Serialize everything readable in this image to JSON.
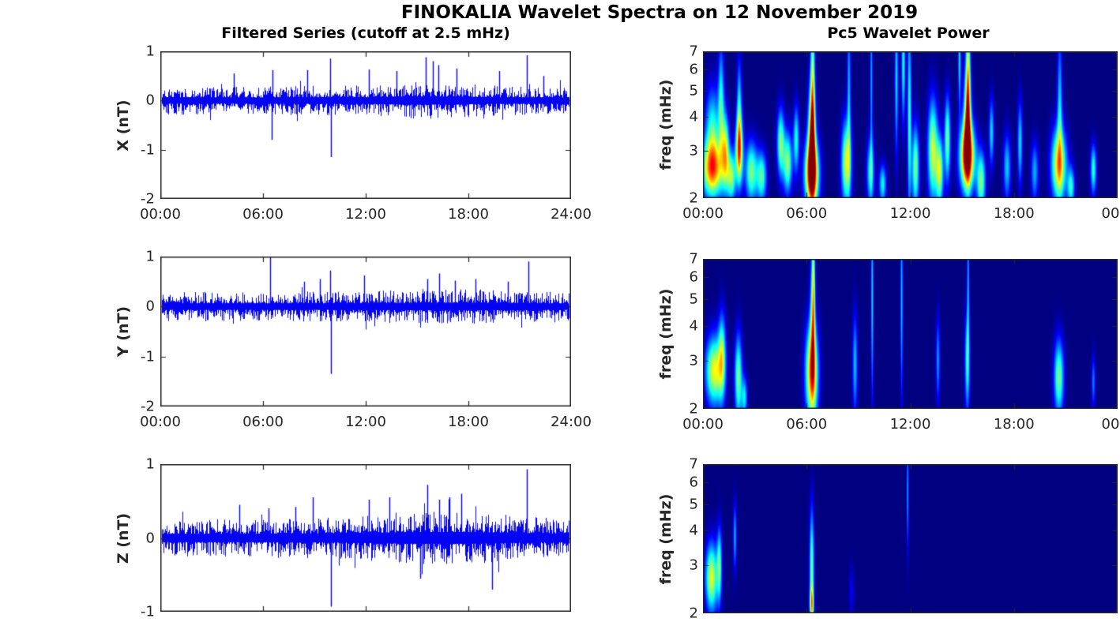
{
  "figure": {
    "title": "FINOKALIA Wavelet Spectra on 12 November 2019"
  },
  "colors": {
    "series_line": "#0404f2",
    "axis": "#262626",
    "title_text": "#000000",
    "spectrogram_background": "#000084",
    "colormap": "jet"
  },
  "left_column": {
    "title": "Filtered Series (cutoff at 2.5 mHz)"
  },
  "right_column": {
    "title": "Pc5 Wavelet Power"
  },
  "chart_data": [
    {
      "type": "line",
      "component": "X",
      "ylabel": "X (nT)",
      "x_range_hours": [
        0,
        24
      ],
      "ylim": [
        -2,
        1
      ],
      "x_ticks": [
        "00:00",
        "06:00",
        "12:00",
        "18:00",
        "24:00"
      ],
      "y_ticks": [
        1,
        0,
        -1,
        -2
      ],
      "description": "band-filtered noisy magnetometer signal centered on 0 nT",
      "noise_envelope": [
        [
          0,
          0.3
        ],
        [
          4,
          0.27
        ],
        [
          8,
          0.3
        ],
        [
          12,
          0.3
        ],
        [
          15,
          0.38
        ],
        [
          17,
          0.36
        ],
        [
          20,
          0.3
        ],
        [
          24,
          0.28
        ]
      ],
      "spikes": [
        [
          4.3,
          0.55
        ],
        [
          6.5,
          -0.8
        ],
        [
          6.55,
          0.62
        ],
        [
          8.6,
          0.62
        ],
        [
          9.9,
          0.85
        ],
        [
          9.98,
          -1.15
        ],
        [
          12.2,
          0.63
        ],
        [
          13.8,
          0.6
        ],
        [
          15.5,
          0.88
        ],
        [
          15.9,
          0.8
        ],
        [
          16.25,
          0.72
        ],
        [
          17.3,
          0.65
        ],
        [
          19.8,
          0.6
        ],
        [
          21.4,
          0.92
        ],
        [
          22.4,
          0.5
        ]
      ]
    },
    {
      "type": "line",
      "component": "Y",
      "ylabel": "Y (nT)",
      "x_range_hours": [
        0,
        24
      ],
      "ylim": [
        -2,
        1
      ],
      "x_ticks": [
        "00:00",
        "06:00",
        "12:00",
        "18:00",
        "24:00"
      ],
      "y_ticks": [
        1,
        0,
        -1,
        -2
      ],
      "description": "band-filtered noisy magnetometer signal centered on 0 nT",
      "noise_envelope": [
        [
          0,
          0.3
        ],
        [
          6,
          0.3
        ],
        [
          10,
          0.3
        ],
        [
          14,
          0.33
        ],
        [
          18,
          0.35
        ],
        [
          21,
          0.32
        ],
        [
          24,
          0.28
        ]
      ],
      "spikes": [
        [
          6.4,
          1.0
        ],
        [
          8.4,
          0.5
        ],
        [
          9.3,
          0.55
        ],
        [
          9.9,
          0.72
        ],
        [
          9.98,
          -1.35
        ],
        [
          11.9,
          0.62
        ],
        [
          15.6,
          0.55
        ],
        [
          16.3,
          0.66
        ],
        [
          17.2,
          0.52
        ],
        [
          18.4,
          0.55
        ],
        [
          20.3,
          0.5
        ],
        [
          21.5,
          0.9
        ]
      ]
    },
    {
      "type": "line",
      "component": "Z",
      "ylabel": "Z (nT)",
      "x_range_hours": [
        0,
        24
      ],
      "ylim": [
        -1,
        1
      ],
      "x_ticks": [],
      "y_ticks": [
        1,
        0,
        -1
      ],
      "description": "band-filtered noisy magnetometer signal centered on 0 nT; bottom axis cut off at figure edge",
      "noise_envelope": [
        [
          0,
          0.25
        ],
        [
          6,
          0.26
        ],
        [
          10,
          0.28
        ],
        [
          13,
          0.33
        ],
        [
          15,
          0.36
        ],
        [
          18,
          0.36
        ],
        [
          21,
          0.3
        ],
        [
          24,
          0.26
        ]
      ],
      "spikes": [
        [
          4.6,
          0.45
        ],
        [
          6.3,
          0.4
        ],
        [
          7.9,
          0.42
        ],
        [
          8.9,
          0.55
        ],
        [
          9.98,
          -0.93
        ],
        [
          12.2,
          0.52
        ],
        [
          13.4,
          0.55
        ],
        [
          15.2,
          -0.55
        ],
        [
          15.6,
          0.72
        ],
        [
          16.3,
          0.52
        ],
        [
          16.9,
          0.55
        ],
        [
          17.6,
          0.6
        ],
        [
          19.4,
          -0.7
        ],
        [
          21.4,
          0.93
        ]
      ]
    },
    {
      "type": "heatmap",
      "component": "X",
      "ylabel": "freq (mHz)",
      "x_range_hours": [
        0,
        24
      ],
      "freq_range_mHz": [
        2,
        7
      ],
      "y_scale": "log",
      "x_ticks": [
        "00:00",
        "06:00",
        "12:00",
        "18:00",
        "00"
      ],
      "freq_ticks": [
        7,
        6,
        5,
        4,
        3,
        2
      ],
      "blob_format": [
        "time_h",
        "freq_mHz",
        "sigma_t_h",
        "sigma_lnf",
        "intensity_0_1"
      ],
      "blobs": [
        [
          0.55,
          2.55,
          0.45,
          0.17,
          0.72
        ],
        [
          0.55,
          3.6,
          0.3,
          0.25,
          0.4
        ],
        [
          1.05,
          4.5,
          0.12,
          0.35,
          0.38
        ],
        [
          1.3,
          3.0,
          0.15,
          0.22,
          0.55
        ],
        [
          1.65,
          2.4,
          0.18,
          0.15,
          0.5
        ],
        [
          2.1,
          3.0,
          0.15,
          0.2,
          0.72
        ],
        [
          2.1,
          4.3,
          0.1,
          0.3,
          0.35
        ],
        [
          2.8,
          2.5,
          0.25,
          0.18,
          0.5
        ],
        [
          3.4,
          2.4,
          0.2,
          0.15,
          0.45
        ],
        [
          4.5,
          3.2,
          0.15,
          0.2,
          0.5
        ],
        [
          4.9,
          2.7,
          0.18,
          0.18,
          0.52
        ],
        [
          5.4,
          3.3,
          0.12,
          0.2,
          0.4
        ],
        [
          6.3,
          2.45,
          0.28,
          0.2,
          0.95
        ],
        [
          6.3,
          3.4,
          0.15,
          0.3,
          0.7
        ],
        [
          6.35,
          5.2,
          0.09,
          0.55,
          0.5
        ],
        [
          8.3,
          2.7,
          0.2,
          0.25,
          0.6
        ],
        [
          8.45,
          5.0,
          0.07,
          0.5,
          0.3
        ],
        [
          9.7,
          2.5,
          0.15,
          0.2,
          0.42
        ],
        [
          9.75,
          5.5,
          0.05,
          0.5,
          0.3
        ],
        [
          10.4,
          2.25,
          0.15,
          0.12,
          0.38
        ],
        [
          11.2,
          5.5,
          0.07,
          0.45,
          0.35
        ],
        [
          11.6,
          6.3,
          0.08,
          0.35,
          0.4
        ],
        [
          11.95,
          4.0,
          0.08,
          0.6,
          0.42
        ],
        [
          12.3,
          2.6,
          0.15,
          0.25,
          0.5
        ],
        [
          13.3,
          3.0,
          0.2,
          0.3,
          0.58
        ],
        [
          13.7,
          2.5,
          0.15,
          0.2,
          0.55
        ],
        [
          14.15,
          3.3,
          0.12,
          0.25,
          0.5
        ],
        [
          15.3,
          2.85,
          0.3,
          0.2,
          0.95
        ],
        [
          15.3,
          4.0,
          0.15,
          0.3,
          0.6
        ],
        [
          15.35,
          5.8,
          0.09,
          0.5,
          0.48
        ],
        [
          14.85,
          6.5,
          0.06,
          0.3,
          0.35
        ],
        [
          16.1,
          2.3,
          0.18,
          0.18,
          0.5
        ],
        [
          16.7,
          3.5,
          0.1,
          0.2,
          0.35
        ],
        [
          17.6,
          2.6,
          0.15,
          0.2,
          0.33
        ],
        [
          18.35,
          3.2,
          0.1,
          0.25,
          0.35
        ],
        [
          19.2,
          2.5,
          0.15,
          0.18,
          0.3
        ],
        [
          20.6,
          2.65,
          0.3,
          0.22,
          0.7
        ],
        [
          20.65,
          4.5,
          0.1,
          0.4,
          0.33
        ],
        [
          21.3,
          2.2,
          0.15,
          0.12,
          0.4
        ],
        [
          22.6,
          2.55,
          0.12,
          0.15,
          0.42
        ]
      ]
    },
    {
      "type": "heatmap",
      "component": "Y",
      "ylabel": "freq (mHz)",
      "x_range_hours": [
        0,
        24
      ],
      "freq_range_mHz": [
        2,
        7
      ],
      "y_scale": "log",
      "x_ticks": [
        "00:00",
        "06:00",
        "12:00",
        "18:00",
        "00"
      ],
      "freq_ticks": [
        7,
        6,
        5,
        4,
        3,
        2
      ],
      "blob_format": [
        "time_h",
        "freq_mHz",
        "sigma_t_h",
        "sigma_lnf",
        "intensity_0_1"
      ],
      "blobs": [
        [
          0.65,
          2.75,
          0.35,
          0.2,
          0.62
        ],
        [
          1.1,
          3.1,
          0.15,
          0.25,
          0.45
        ],
        [
          2.05,
          2.6,
          0.15,
          0.25,
          0.5
        ],
        [
          2.4,
          2.2,
          0.12,
          0.12,
          0.35
        ],
        [
          6.3,
          2.7,
          0.25,
          0.28,
          0.78
        ],
        [
          6.35,
          4.3,
          0.1,
          0.4,
          0.45
        ],
        [
          6.4,
          6.0,
          0.06,
          0.4,
          0.35
        ],
        [
          8.8,
          2.9,
          0.1,
          0.3,
          0.32
        ],
        [
          9.8,
          5.0,
          0.05,
          0.6,
          0.35
        ],
        [
          11.5,
          5.0,
          0.05,
          0.6,
          0.33
        ],
        [
          13.6,
          3.0,
          0.08,
          0.25,
          0.28
        ],
        [
          15.3,
          3.0,
          0.1,
          0.3,
          0.42
        ],
        [
          15.35,
          6.0,
          0.04,
          0.4,
          0.3
        ],
        [
          20.6,
          2.6,
          0.2,
          0.22,
          0.5
        ],
        [
          22.6,
          2.5,
          0.08,
          0.15,
          0.25
        ]
      ]
    },
    {
      "type": "heatmap",
      "component": "Z",
      "ylabel": "freq (mHz)",
      "x_range_hours": [
        0,
        24
      ],
      "freq_range_mHz": [
        2,
        7
      ],
      "y_scale": "log",
      "x_ticks": [],
      "freq_ticks": [
        7,
        6,
        5,
        4,
        3,
        2
      ],
      "blob_format": [
        "time_h",
        "freq_mHz",
        "sigma_t_h",
        "sigma_lnf",
        "intensity_0_1"
      ],
      "blobs": [
        [
          0.5,
          2.7,
          0.25,
          0.2,
          0.6
        ],
        [
          0.95,
          3.0,
          0.1,
          0.22,
          0.42
        ],
        [
          1.85,
          3.8,
          0.07,
          0.2,
          0.3
        ],
        [
          6.3,
          2.9,
          0.09,
          0.35,
          0.5
        ],
        [
          6.3,
          2.15,
          0.08,
          0.1,
          0.45
        ],
        [
          11.85,
          5.5,
          0.04,
          0.35,
          0.3
        ],
        [
          8.6,
          2.4,
          0.1,
          0.15,
          0.12
        ]
      ]
    }
  ]
}
